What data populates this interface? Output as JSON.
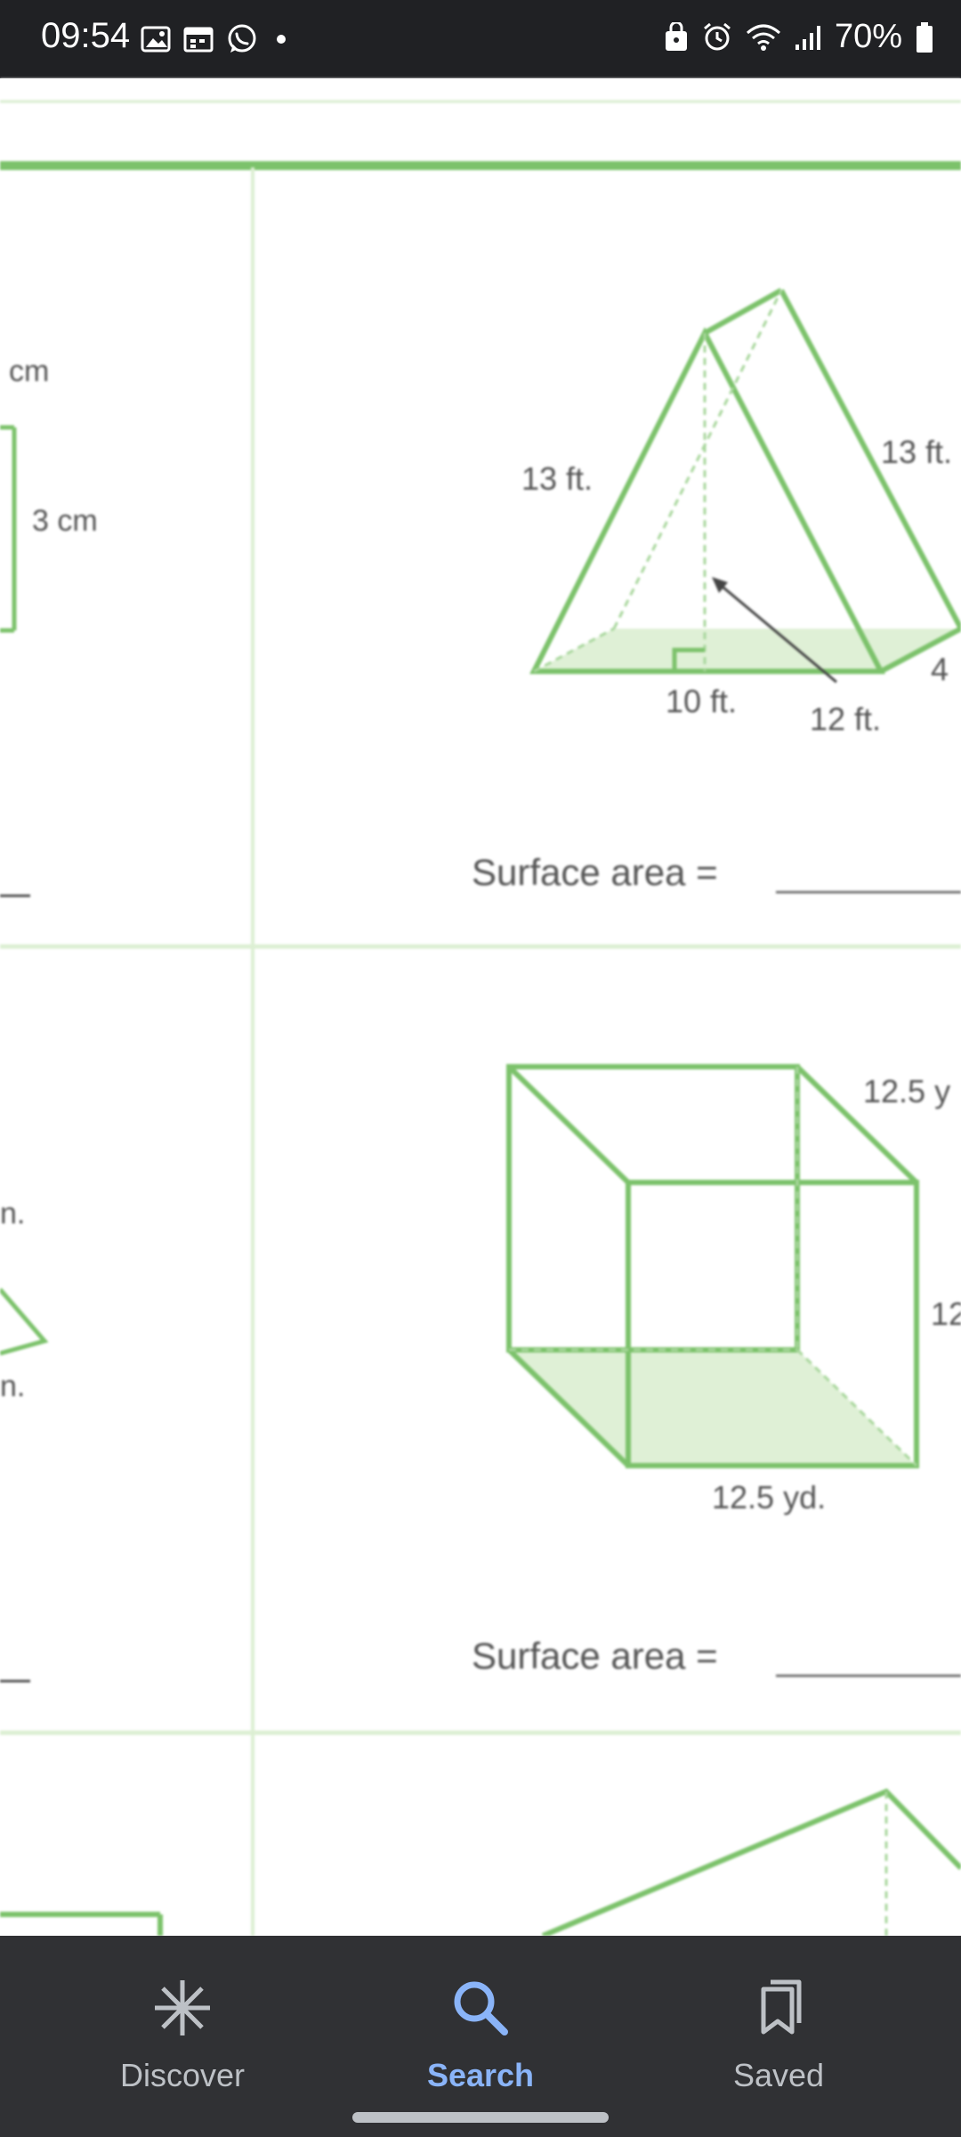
{
  "status_bar": {
    "time": "09:54",
    "battery": "70%"
  },
  "worksheet": {
    "left_labels": {
      "cm_top": "cm",
      "cm_side": "3 cm",
      "n_top": "n.",
      "n_bottom": "n."
    },
    "triangular_prism": {
      "side_left": "13 ft.",
      "side_right": "13 ft.",
      "base": "10 ft.",
      "height": "12 ft.",
      "depth_partial": "4",
      "surface_area_label": "Surface area ="
    },
    "cube": {
      "top_edge": "12.5 y",
      "right_edge": "12",
      "bottom_edge": "12.5 yd.",
      "surface_area_label": "Surface area ="
    }
  },
  "bottom_nav": {
    "items": [
      {
        "label": "Discover",
        "icon": "asterisk-icon"
      },
      {
        "label": "Search",
        "icon": "search-icon",
        "active": true
      },
      {
        "label": "Saved",
        "icon": "saved-icon"
      }
    ]
  }
}
